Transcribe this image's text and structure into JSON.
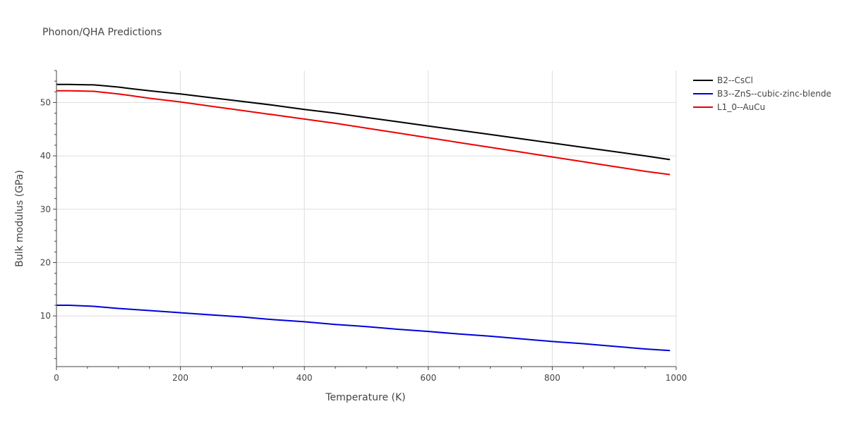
{
  "chart_data": {
    "type": "line",
    "title": "Phonon/QHA Predictions",
    "xlabel": "Temperature (K)",
    "ylabel": "Bulk modulus (GPa)",
    "xlim": [
      0,
      1000
    ],
    "ylim": [
      0.5,
      56
    ],
    "xticks": [
      0,
      200,
      400,
      600,
      800,
      1000
    ],
    "yticks": [
      10,
      20,
      30,
      40,
      50
    ],
    "grid": true,
    "legend_position": "top-right",
    "series": [
      {
        "name": "B2--CsCl",
        "color": "#000000",
        "x": [
          0,
          20,
          40,
          60,
          80,
          100,
          120,
          150,
          200,
          250,
          300,
          350,
          400,
          450,
          500,
          550,
          600,
          650,
          700,
          750,
          800,
          850,
          900,
          950,
          990
        ],
        "y": [
          53.4,
          53.4,
          53.35,
          53.3,
          53.1,
          52.9,
          52.6,
          52.2,
          51.6,
          50.9,
          50.2,
          49.5,
          48.7,
          48.0,
          47.2,
          46.4,
          45.6,
          44.8,
          44.0,
          43.2,
          42.4,
          41.6,
          40.8,
          40.0,
          39.3
        ]
      },
      {
        "name": "B3--ZnS--cubic-zinc-blende",
        "color": "#0000dd",
        "x": [
          0,
          20,
          40,
          60,
          80,
          100,
          150,
          200,
          250,
          300,
          350,
          400,
          450,
          500,
          550,
          600,
          650,
          700,
          750,
          800,
          850,
          900,
          950,
          990
        ],
        "y": [
          12.0,
          12.0,
          11.9,
          11.8,
          11.6,
          11.4,
          11.0,
          10.6,
          10.2,
          9.8,
          9.3,
          8.9,
          8.4,
          8.0,
          7.5,
          7.1,
          6.6,
          6.2,
          5.7,
          5.2,
          4.8,
          4.3,
          3.8,
          3.5
        ]
      },
      {
        "name": "L1_0--AuCu",
        "color": "#ee0000",
        "x": [
          0,
          20,
          40,
          60,
          80,
          100,
          120,
          150,
          200,
          250,
          300,
          350,
          400,
          450,
          500,
          550,
          600,
          650,
          700,
          750,
          800,
          850,
          900,
          950,
          990
        ],
        "y": [
          52.2,
          52.2,
          52.15,
          52.1,
          51.85,
          51.6,
          51.3,
          50.8,
          50.1,
          49.3,
          48.5,
          47.7,
          46.9,
          46.1,
          45.2,
          44.3,
          43.4,
          42.5,
          41.6,
          40.7,
          39.8,
          38.9,
          38.0,
          37.1,
          36.5
        ]
      }
    ]
  }
}
